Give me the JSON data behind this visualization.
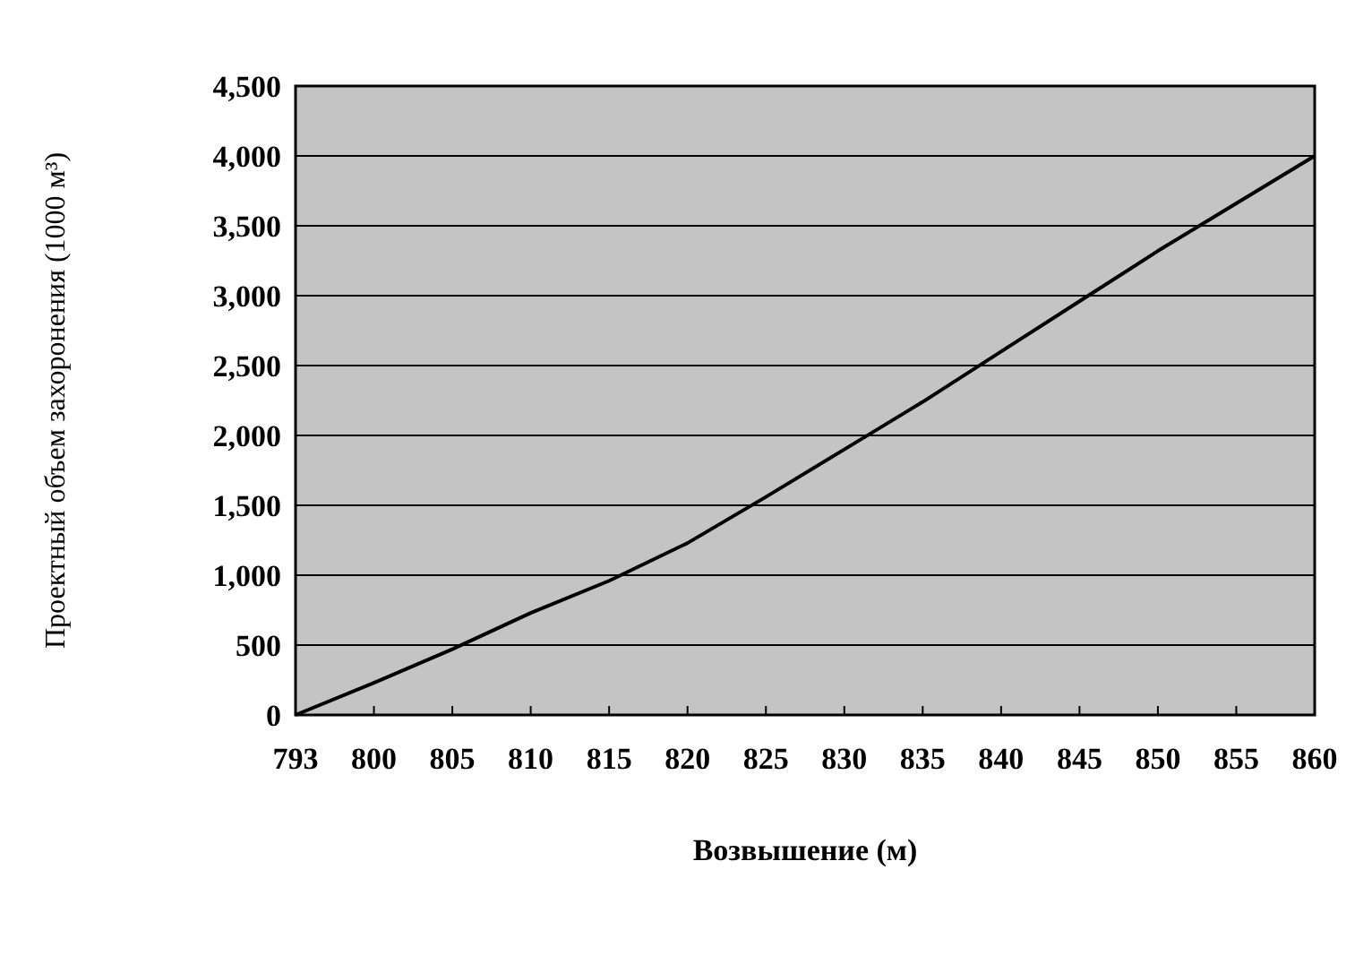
{
  "chart_data": {
    "type": "line",
    "xlabel": "Возвышение (м)",
    "ylabel": "Проектный объем захоронения (1000 м³)",
    "categories": [
      "793",
      "800",
      "805",
      "810",
      "815",
      "820",
      "825",
      "830",
      "835",
      "840",
      "845",
      "850",
      "855",
      "860"
    ],
    "series": [
      {
        "color": "#000000",
        "values": [
          0,
          230,
          470,
          730,
          960,
          1230,
          1560,
          1900,
          2240,
          2600,
          2960,
          3320,
          3660,
          4000
        ]
      }
    ],
    "ylim": [
      0,
      4500
    ],
    "yticks": [
      {
        "value": 0,
        "label": "0"
      },
      {
        "value": 500,
        "label": "500"
      },
      {
        "value": 1000,
        "label": "1,000"
      },
      {
        "value": 1500,
        "label": "1,500"
      },
      {
        "value": 2000,
        "label": "2,000"
      },
      {
        "value": 2500,
        "label": "2,500"
      },
      {
        "value": 3000,
        "label": "3,000"
      },
      {
        "value": 3500,
        "label": "3,500"
      },
      {
        "value": 4000,
        "label": "4,000"
      },
      {
        "value": 4500,
        "label": "4,500"
      }
    ],
    "grid": "y",
    "marker": "none",
    "line_style": "solid"
  }
}
